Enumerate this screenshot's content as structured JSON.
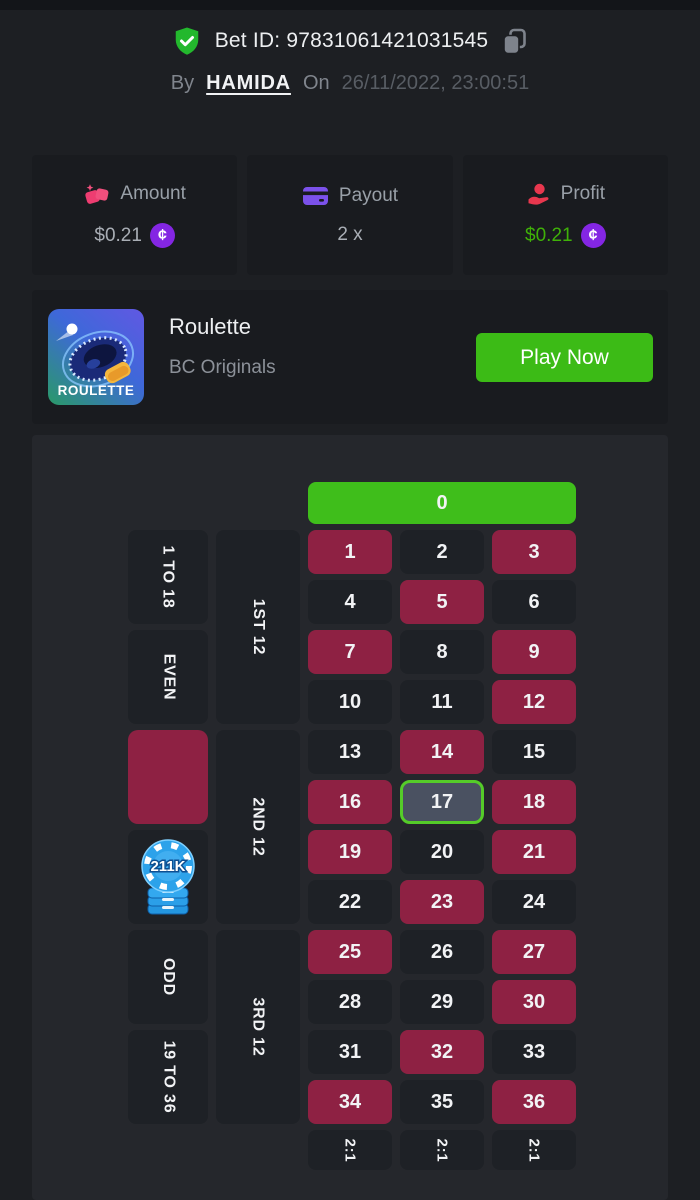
{
  "header": {
    "verified_icon": "shield-check-icon",
    "bet_id_prefix": "Bet ID:",
    "bet_id": "97831061421031545",
    "copy_icon": "copy-icon",
    "by_label": "By",
    "username": "HAMIDA",
    "on_label": "On",
    "datetime": "26/11/2022, 23:00:51"
  },
  "stats": {
    "amount": {
      "label": "Amount",
      "icon": "gems-icon",
      "value": "$0.21",
      "currency_icon": "bcd-coin-icon",
      "currency_symbol": "¢"
    },
    "payout": {
      "label": "Payout",
      "icon": "credit-card-icon",
      "value": "2 x"
    },
    "profit": {
      "label": "Profit",
      "icon": "hand-coin-icon",
      "value": "$0.21",
      "currency_icon": "bcd-coin-icon",
      "currency_symbol": "¢"
    }
  },
  "game": {
    "title": "Roulette",
    "provider": "BC Originals",
    "play_label": "Play Now",
    "tile_label": "ROULETTE"
  },
  "roulette": {
    "zero_label": "0",
    "winning_number": 17,
    "red_numbers": [
      1,
      3,
      5,
      7,
      9,
      12,
      14,
      16,
      18,
      19,
      21,
      23,
      25,
      27,
      30,
      32,
      34,
      36
    ],
    "numbers_per_row": 3,
    "rows": 12,
    "outside_bets": [
      {
        "label": "1 TO 18",
        "type": "range"
      },
      {
        "label": "EVEN",
        "type": "parity"
      },
      {
        "label": "",
        "type": "red"
      },
      {
        "label": "",
        "type": "black",
        "chip": "211K"
      },
      {
        "label": "ODD",
        "type": "parity"
      },
      {
        "label": "19 TO 36",
        "type": "range"
      }
    ],
    "dozens": [
      "1ST 12",
      "2ND 12",
      "3RD 12"
    ],
    "column_bets": [
      "2:1",
      "2:1",
      "2:1"
    ],
    "chip_value": "211K"
  },
  "colors": {
    "page_bg": "#1d1f23",
    "card_bg": "#191b1f",
    "panel_bg": "#25272c",
    "dark_cell": "#1e2126",
    "red_cell": "#8e2143",
    "zero_green": "#3fbe1b",
    "win_bg": "#4a5161",
    "win_border": "#55cc29",
    "play_green": "#3cbb16",
    "profit_green": "#3fb108",
    "coin_purple": "#8426e3",
    "chip_blue": "#2ca2ea"
  }
}
